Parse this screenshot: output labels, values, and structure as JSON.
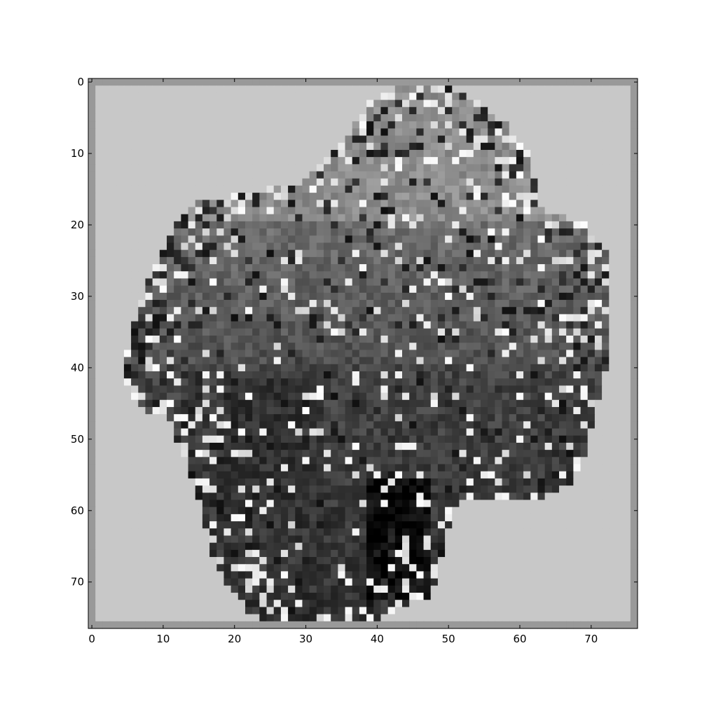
{
  "chart_data": {
    "type": "heatmap",
    "title": "",
    "xlabel": "",
    "ylabel": "",
    "colormap": "gray",
    "grid": false,
    "legend": "none",
    "xlim": [
      -0.5,
      76.5
    ],
    "ylim": [
      76.5,
      -0.5
    ],
    "x_ticks": [
      0,
      10,
      20,
      30,
      40,
      50,
      60,
      70
    ],
    "y_ticks": [
      0,
      10,
      20,
      30,
      40,
      50,
      60,
      70
    ],
    "x_tick_labels": [
      "0",
      "10",
      "20",
      "30",
      "40",
      "50",
      "60",
      "70"
    ],
    "y_tick_labels": [
      "0",
      "10",
      "20",
      "30",
      "40",
      "50",
      "60",
      "70"
    ],
    "grid_size": [
      77,
      77
    ],
    "colors": {
      "background_cell": "#c8c8c8",
      "border_cell": "#999999",
      "mid_gray": "#8c8c8c",
      "dark_gray": "#3a3a3a",
      "black": "#050505"
    }
  }
}
